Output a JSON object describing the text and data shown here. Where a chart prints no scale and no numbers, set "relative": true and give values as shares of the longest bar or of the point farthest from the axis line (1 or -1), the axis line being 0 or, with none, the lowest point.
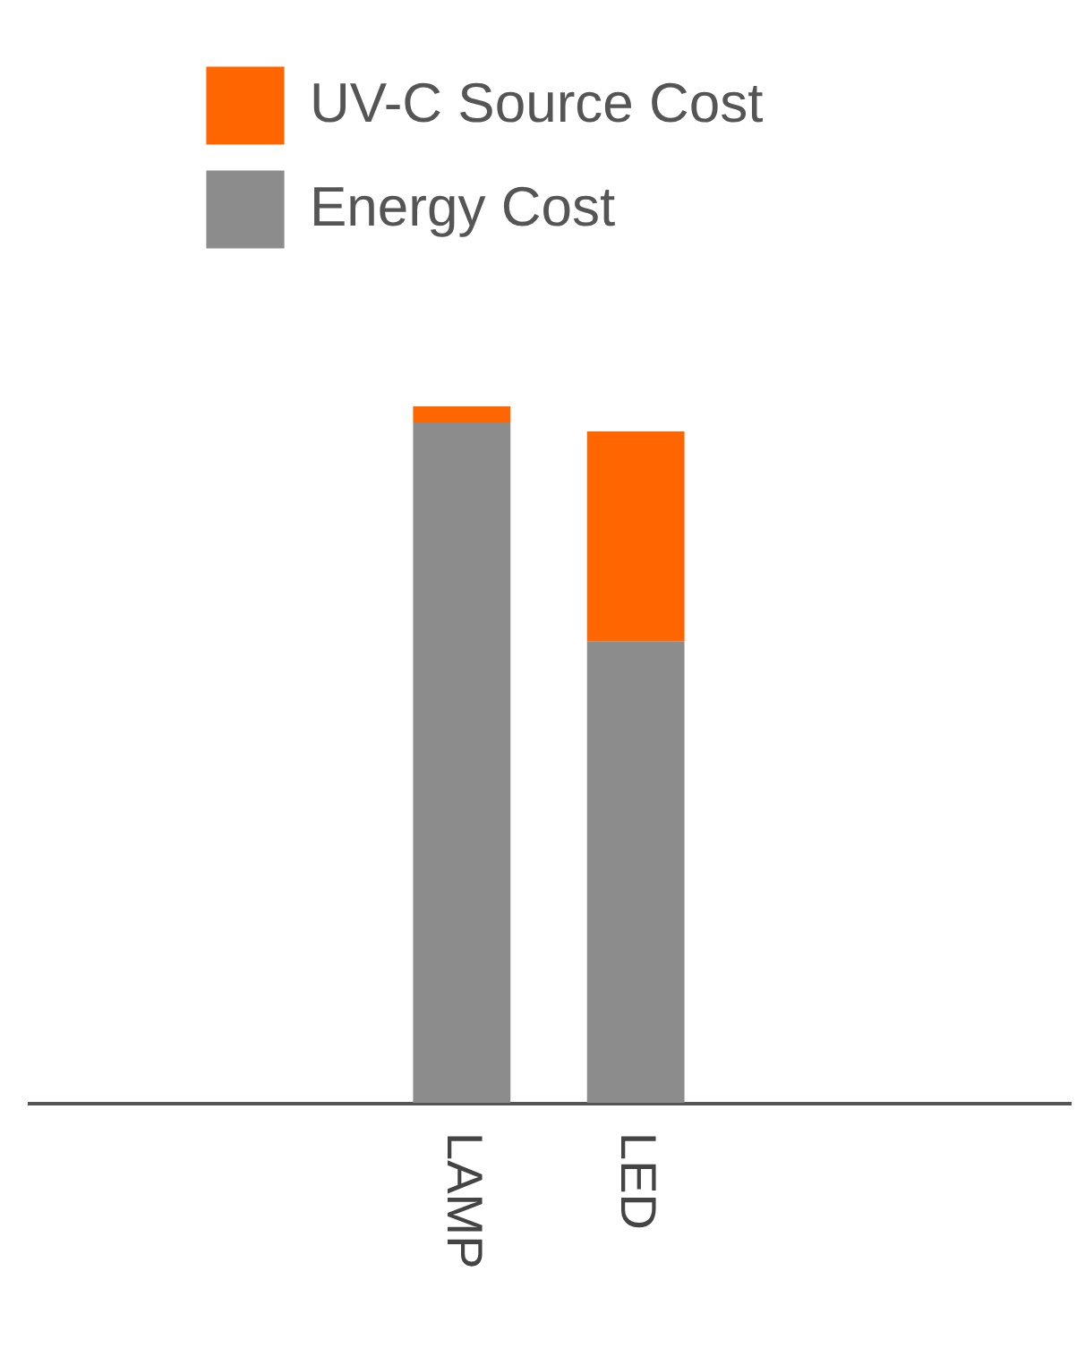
{
  "chart_data": {
    "type": "bar",
    "stacked": true,
    "relative": true,
    "legend": "top",
    "categories": [
      null,
      null,
      "LAMP",
      "LED",
      null,
      null
    ],
    "series": [
      {
        "name": "Energy Cost",
        "color": "#8c8c8c",
        "values": [
          null,
          null,
          0.977,
          0.663,
          null,
          null
        ]
      },
      {
        "name": "UV-C Source Cost",
        "color": "#ff6600",
        "values": [
          null,
          null,
          0.023,
          0.301,
          null,
          null
        ]
      }
    ]
  }
}
